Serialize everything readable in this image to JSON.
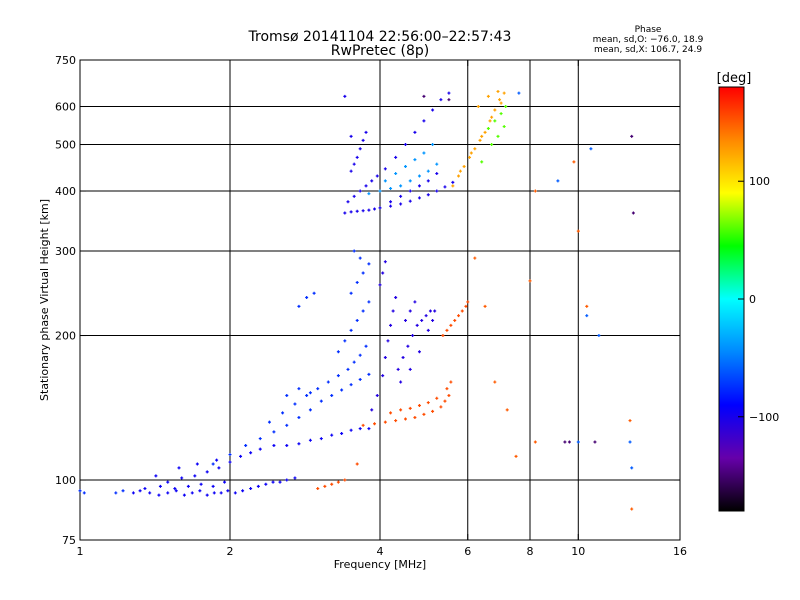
{
  "chart_data": {
    "type": "scatter",
    "title": "Tromsø 20141104 22:56:00–22:57:43",
    "subtitle": "RwPretec (8p)",
    "xlabel": "Frequency [MHz]",
    "ylabel": "Stationary phase Virtual Height [km]",
    "x_scale": "log2",
    "y_scale": "log",
    "xlim": [
      1,
      16
    ],
    "ylim": [
      75,
      750
    ],
    "x_ticks": [
      1,
      2,
      4,
      6,
      8,
      10,
      16
    ],
    "x_tick_labels": [
      "1",
      "2",
      "4",
      "6",
      "8",
      "10",
      "16"
    ],
    "x_grid": [
      2,
      4,
      6,
      8,
      10
    ],
    "y_ticks": [
      75,
      100,
      200,
      300,
      400,
      500,
      600,
      750
    ],
    "y_tick_labels": [
      "75",
      "100",
      "200",
      "300",
      "400",
      "500",
      "600",
      "750"
    ],
    "y_grid": [
      100,
      200,
      300,
      400,
      500,
      600
    ],
    "grid": true,
    "phase_stats": {
      "title": "Phase",
      "line1": "mean, sd,O: −76.0, 18.9",
      "line2": "mean, sd,X: 106.7, 24.9"
    },
    "colorbar": {
      "label": "[deg]",
      "range": [
        -180,
        180
      ],
      "ticks": [
        100,
        0,
        -100
      ],
      "tick_labels": [
        "100",
        "0",
        "−100"
      ],
      "colors": [
        "#000000",
        "#6600aa",
        "#0000ff",
        "#0088ff",
        "#00ffff",
        "#00ff00",
        "#ffff00",
        "#ff8800",
        "#ff0000"
      ]
    },
    "series": [
      {
        "name": "",
        "phase": -95,
        "points": [
          [
            1.28,
            94
          ],
          [
            1.32,
            95
          ],
          [
            1.38,
            94
          ],
          [
            1.44,
            93
          ],
          [
            1.5,
            94
          ],
          [
            1.56,
            95
          ],
          [
            1.62,
            93
          ],
          [
            1.68,
            94
          ],
          [
            1.74,
            95
          ],
          [
            1.8,
            93
          ],
          [
            1.86,
            94
          ],
          [
            1.92,
            94
          ],
          [
            1.98,
            95
          ],
          [
            2.05,
            94
          ],
          [
            2.12,
            95
          ],
          [
            2.2,
            96
          ],
          [
            2.28,
            97
          ],
          [
            2.36,
            98
          ],
          [
            2.44,
            99
          ],
          [
            2.52,
            99
          ],
          [
            2.6,
            100
          ],
          [
            2.7,
            101
          ],
          [
            1.35,
            96
          ],
          [
            1.45,
            97
          ],
          [
            1.55,
            96
          ],
          [
            1.65,
            97
          ],
          [
            1.75,
            98
          ],
          [
            1.85,
            97
          ],
          [
            1.95,
            99
          ],
          [
            1.5,
            99
          ],
          [
            1.6,
            101
          ],
          [
            1.7,
            102
          ],
          [
            1.8,
            104
          ],
          [
            1.9,
            106
          ],
          [
            2.0,
            109
          ],
          [
            2.1,
            112
          ],
          [
            2.2,
            114
          ],
          [
            2.3,
            116
          ],
          [
            2.45,
            118
          ],
          [
            2.6,
            118
          ],
          [
            2.75,
            119
          ],
          [
            2.9,
            121
          ],
          [
            3.05,
            122
          ],
          [
            3.2,
            124
          ],
          [
            3.35,
            125
          ],
          [
            3.5,
            127
          ],
          [
            3.65,
            128
          ],
          [
            3.8,
            128
          ],
          [
            1.42,
            102
          ],
          [
            1.58,
            106
          ],
          [
            1.72,
            108
          ],
          [
            1.88,
            110
          ]
        ]
      },
      {
        "name": "",
        "phase": -75,
        "points": [
          [
            1.85,
            108
          ],
          [
            2.0,
            113
          ],
          [
            2.15,
            118
          ],
          [
            2.3,
            122
          ],
          [
            2.45,
            126
          ],
          [
            2.6,
            130
          ],
          [
            2.75,
            135
          ],
          [
            2.9,
            140
          ],
          [
            3.05,
            146
          ],
          [
            3.2,
            150
          ],
          [
            3.35,
            154
          ],
          [
            3.5,
            158
          ],
          [
            3.65,
            162
          ],
          [
            3.8,
            166
          ],
          [
            2.4,
            132
          ],
          [
            2.55,
            138
          ],
          [
            2.7,
            144
          ],
          [
            2.85,
            150
          ],
          [
            3.0,
            155
          ],
          [
            3.15,
            160
          ],
          [
            3.3,
            165
          ],
          [
            3.45,
            170
          ],
          [
            3.55,
            176
          ],
          [
            3.65,
            182
          ],
          [
            3.75,
            190
          ],
          [
            3.3,
            185
          ],
          [
            3.4,
            195
          ],
          [
            3.5,
            205
          ],
          [
            3.6,
            215
          ],
          [
            3.7,
            225
          ],
          [
            3.8,
            235
          ],
          [
            3.5,
            245
          ],
          [
            3.6,
            258
          ],
          [
            3.7,
            270
          ],
          [
            3.8,
            282
          ],
          [
            3.65,
            290
          ],
          [
            3.55,
            300
          ],
          [
            2.6,
            150
          ],
          [
            2.75,
            155
          ],
          [
            2.9,
            152
          ],
          [
            1.02,
            94
          ],
          [
            1.0,
            95
          ],
          [
            1.18,
            94
          ],
          [
            1.22,
            95
          ],
          [
            2.75,
            230
          ],
          [
            2.85,
            240
          ],
          [
            2.95,
            245
          ]
        ]
      },
      {
        "name": "",
        "phase": -105,
        "points": [
          [
            3.85,
            140
          ],
          [
            3.95,
            150
          ],
          [
            4.05,
            165
          ],
          [
            4.1,
            180
          ],
          [
            4.15,
            195
          ],
          [
            4.2,
            210
          ],
          [
            4.25,
            225
          ],
          [
            4.3,
            240
          ],
          [
            4.0,
            255
          ],
          [
            4.05,
            270
          ],
          [
            4.1,
            285
          ],
          [
            4.35,
            170
          ],
          [
            4.45,
            180
          ],
          [
            4.55,
            190
          ],
          [
            4.65,
            200
          ],
          [
            4.75,
            210
          ],
          [
            4.85,
            215
          ],
          [
            4.95,
            220
          ],
          [
            5.05,
            225
          ],
          [
            5.15,
            225
          ],
          [
            4.5,
            215
          ],
          [
            4.6,
            225
          ],
          [
            4.7,
            235
          ],
          [
            4.4,
            160
          ],
          [
            4.6,
            170
          ],
          [
            4.8,
            185
          ],
          [
            5.0,
            205
          ],
          [
            5.1,
            215
          ]
        ]
      },
      {
        "name": "",
        "phase": 155,
        "points": [
          [
            3.7,
            130
          ],
          [
            3.9,
            131
          ],
          [
            4.1,
            132
          ],
          [
            4.3,
            133
          ],
          [
            4.5,
            134
          ],
          [
            4.7,
            135
          ],
          [
            4.9,
            137
          ],
          [
            5.1,
            139
          ],
          [
            5.3,
            142
          ],
          [
            5.4,
            146
          ],
          [
            5.5,
            150
          ],
          [
            4.2,
            138
          ],
          [
            4.4,
            140
          ],
          [
            4.6,
            141
          ],
          [
            4.8,
            143
          ],
          [
            5.0,
            145
          ],
          [
            5.2,
            148
          ],
          [
            5.45,
            155
          ],
          [
            5.55,
            160
          ],
          [
            5.35,
            200
          ],
          [
            5.45,
            205
          ],
          [
            5.55,
            210
          ],
          [
            5.65,
            215
          ],
          [
            5.75,
            220
          ],
          [
            5.85,
            225
          ],
          [
            5.95,
            230
          ],
          [
            6.0,
            235
          ],
          [
            3.1,
            97
          ],
          [
            3.2,
            98
          ],
          [
            3.3,
            99
          ],
          [
            3.4,
            100
          ],
          [
            3.6,
            108
          ],
          [
            3.0,
            96
          ]
        ]
      },
      {
        "name": "",
        "phase": -100,
        "points": [
          [
            3.4,
            360
          ],
          [
            3.5,
            362
          ],
          [
            3.6,
            363
          ],
          [
            3.7,
            364
          ],
          [
            3.8,
            365
          ],
          [
            3.9,
            367
          ],
          [
            4.0,
            369
          ],
          [
            4.2,
            372
          ],
          [
            4.4,
            376
          ],
          [
            4.6,
            381
          ],
          [
            4.8,
            387
          ],
          [
            5.0,
            393
          ],
          [
            5.2,
            400
          ],
          [
            5.4,
            408
          ],
          [
            5.6,
            417
          ],
          [
            3.45,
            380
          ],
          [
            3.55,
            390
          ],
          [
            3.65,
            400
          ],
          [
            3.75,
            410
          ],
          [
            3.85,
            420
          ],
          [
            3.95,
            430
          ],
          [
            3.5,
            440
          ],
          [
            3.55,
            455
          ],
          [
            3.6,
            470
          ],
          [
            3.65,
            490
          ],
          [
            3.7,
            510
          ],
          [
            3.75,
            530
          ],
          [
            3.4,
            630
          ],
          [
            3.5,
            520
          ],
          [
            4.1,
            445
          ],
          [
            4.3,
            470
          ],
          [
            4.5,
            500
          ],
          [
            4.7,
            530
          ],
          [
            4.9,
            560
          ],
          [
            5.1,
            590
          ],
          [
            5.3,
            620
          ],
          [
            5.5,
            640
          ],
          [
            4.2,
            380
          ],
          [
            4.4,
            390
          ],
          [
            4.6,
            400
          ],
          [
            4.8,
            410
          ],
          [
            5.0,
            420
          ],
          [
            5.2,
            435
          ]
        ]
      },
      {
        "name": "",
        "phase": -40,
        "points": [
          [
            3.8,
            395
          ],
          [
            4.0,
            400
          ],
          [
            4.2,
            405
          ],
          [
            4.4,
            410
          ],
          [
            4.6,
            420
          ],
          [
            4.8,
            430
          ],
          [
            5.0,
            440
          ],
          [
            5.2,
            455
          ],
          [
            4.1,
            420
          ],
          [
            4.3,
            435
          ],
          [
            4.5,
            450
          ],
          [
            4.7,
            465
          ],
          [
            4.9,
            480
          ],
          [
            5.1,
            500
          ]
        ]
      },
      {
        "name": "",
        "phase": 125,
        "points": [
          [
            5.6,
            410
          ],
          [
            5.75,
            430
          ],
          [
            5.9,
            450
          ],
          [
            6.05,
            470
          ],
          [
            6.2,
            490
          ],
          [
            6.35,
            510
          ],
          [
            6.5,
            530
          ],
          [
            6.65,
            560
          ],
          [
            6.8,
            590
          ],
          [
            6.95,
            620
          ],
          [
            7.1,
            640
          ],
          [
            5.8,
            440
          ],
          [
            6.1,
            480
          ],
          [
            6.4,
            520
          ],
          [
            6.7,
            570
          ],
          [
            7.0,
            610
          ],
          [
            6.3,
            600
          ],
          [
            6.6,
            630
          ],
          [
            6.9,
            645
          ]
        ]
      },
      {
        "name": "",
        "phase": 60,
        "points": [
          [
            6.6,
            540
          ],
          [
            6.8,
            560
          ],
          [
            7.0,
            580
          ],
          [
            7.15,
            600
          ],
          [
            6.9,
            520
          ],
          [
            7.1,
            545
          ],
          [
            6.4,
            460
          ],
          [
            6.7,
            500
          ]
        ]
      },
      {
        "name": "",
        "phase": -150,
        "points": [
          [
            9.4,
            120
          ],
          [
            9.6,
            120
          ],
          [
            10.8,
            120
          ],
          [
            12.8,
            520
          ],
          [
            12.9,
            360
          ],
          [
            4.9,
            630
          ],
          [
            5.5,
            620
          ]
        ]
      },
      {
        "name": "",
        "phase": 150,
        "points": [
          [
            8.0,
            260
          ],
          [
            8.2,
            400
          ],
          [
            10.0,
            330
          ],
          [
            10.4,
            230
          ],
          [
            9.8,
            460
          ],
          [
            6.2,
            290
          ],
          [
            6.5,
            230
          ],
          [
            6.8,
            160
          ],
          [
            7.2,
            140
          ],
          [
            7.5,
            112
          ],
          [
            8.2,
            120
          ],
          [
            12.7,
            133
          ],
          [
            12.8,
            87
          ]
        ]
      },
      {
        "name": "",
        "phase": -60,
        "points": [
          [
            7.6,
            640
          ],
          [
            9.1,
            420
          ],
          [
            10.4,
            220
          ],
          [
            11.0,
            200
          ],
          [
            12.8,
            106
          ],
          [
            12.7,
            120
          ],
          [
            10.0,
            120
          ],
          [
            10.6,
            490
          ]
        ]
      }
    ]
  }
}
